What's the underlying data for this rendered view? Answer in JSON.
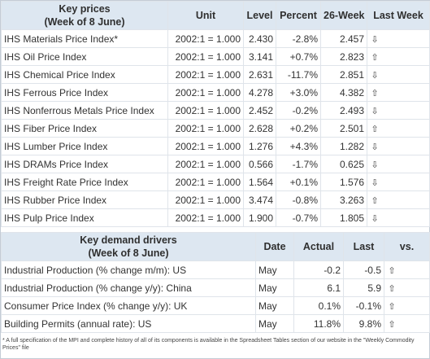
{
  "prices": {
    "title_line1": "Key prices",
    "title_line2": "(Week of 8 June)",
    "headers": [
      "Unit",
      "Level",
      "Percent",
      "26-Week",
      "Last Week"
    ],
    "rows": [
      {
        "name": "IHS Materials Price Index*",
        "unit": "2002:1 = 1.000",
        "level": "2.430",
        "percent": "-2.8%",
        "w26": "2.457",
        "last": "⇩"
      },
      {
        "name": "IHS Oil Price Index",
        "unit": "2002:1 = 1.000",
        "level": "3.141",
        "percent": "+0.7%",
        "w26": "2.823",
        "last": "⇧"
      },
      {
        "name": "IHS Chemical Price Index",
        "unit": "2002:1 = 1.000",
        "level": "2.631",
        "percent": "-11.7%",
        "w26": "2.851",
        "last": "⇩"
      },
      {
        "name": "IHS Ferrous Price Index",
        "unit": "2002:1 = 1.000",
        "level": "4.278",
        "percent": "+3.0%",
        "w26": "4.382",
        "last": "⇧"
      },
      {
        "name": "IHS Nonferrous Metals Price Index",
        "unit": "2002:1 = 1.000",
        "level": "2.452",
        "percent": "-0.2%",
        "w26": "2.493",
        "last": "⇩"
      },
      {
        "name": "IHS Fiber Price Index",
        "unit": "2002:1 = 1.000",
        "level": "2.628",
        "percent": "+0.2%",
        "w26": "2.501",
        "last": "⇧"
      },
      {
        "name": "IHS Lumber Price Index",
        "unit": "2002:1 = 1.000",
        "level": "1.276",
        "percent": "+4.3%",
        "w26": "1.282",
        "last": "⇩"
      },
      {
        "name": "IHS DRAMs Price Index",
        "unit": "2002:1 = 1.000",
        "level": "0.566",
        "percent": "-1.7%",
        "w26": "0.625",
        "last": "⇩"
      },
      {
        "name": "IHS Freight Rate Price Index",
        "unit": "2002:1 = 1.000",
        "level": "1.564",
        "percent": "+0.1%",
        "w26": "1.576",
        "last": "⇩"
      },
      {
        "name": "IHS Rubber Price Index",
        "unit": "2002:1 = 1.000",
        "level": "3.474",
        "percent": "-0.8%",
        "w26": "3.263",
        "last": "⇧"
      },
      {
        "name": "IHS Pulp Price Index",
        "unit": "2002:1 = 1.000",
        "level": "1.900",
        "percent": "-0.7%",
        "w26": "1.805",
        "last": "⇩"
      }
    ]
  },
  "drivers": {
    "title_line1": "Key demand drivers",
    "title_line2": "(Week of 8 June)",
    "headers": [
      "Date",
      "Actual",
      "Last",
      "vs."
    ],
    "rows": [
      {
        "name": "Industrial Production (% change m/m):  US",
        "date": "May",
        "actual": "-0.2",
        "last": "-0.5",
        "vs": "⇧"
      },
      {
        "name": "Industrial Production (% change y/y):  China",
        "date": "May",
        "actual": "6.1",
        "last": "5.9",
        "vs": "⇧"
      },
      {
        "name": "Consumer Price Index (% change y/y):  UK",
        "date": "May",
        "actual": "0.1%",
        "last": "-0.1%",
        "vs": "⇧"
      },
      {
        "name": "Building Permits (annual rate):  US",
        "date": "May",
        "actual": "11.8%",
        "last": "9.8%",
        "vs": "⇧"
      }
    ]
  },
  "footnote": "* A full specification of the MPI and complete history of all of its components is available in the Spreadsheet Tables section of our website in the \"Weekly Commodity Prices\" file"
}
